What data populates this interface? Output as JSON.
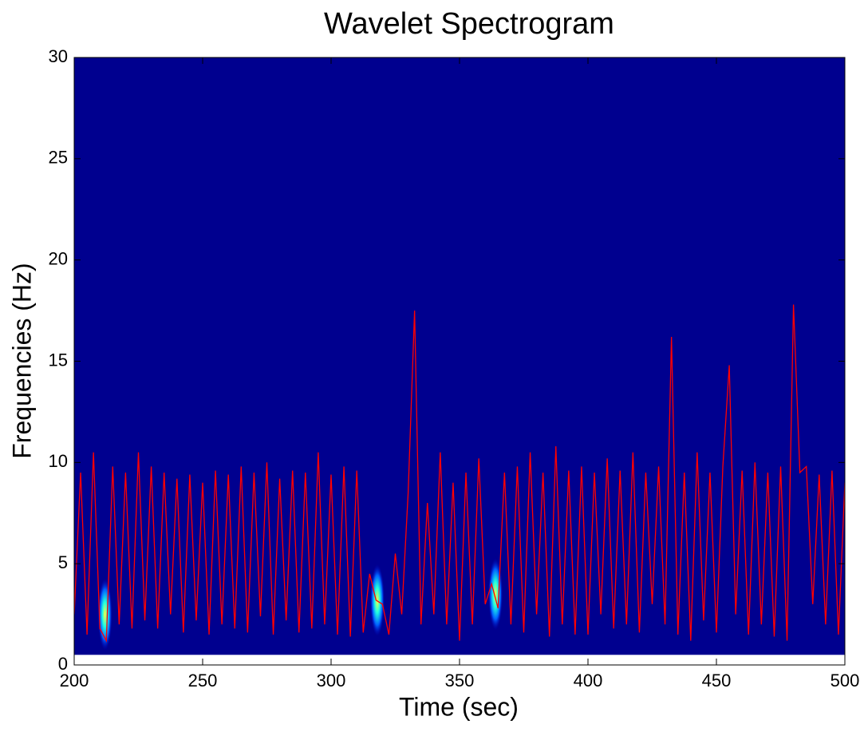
{
  "chart_data": {
    "type": "spectrogram",
    "title": "Wavelet Spectrogram",
    "x_label": "Time (sec)",
    "y_label": "Frequencies (Hz)",
    "xlim": [
      200,
      500
    ],
    "ylim": [
      0,
      30
    ],
    "xticks": [
      200,
      250,
      300,
      350,
      400,
      450,
      500
    ],
    "yticks": [
      0,
      5,
      10,
      15,
      20,
      25,
      30
    ],
    "spectrogram_ylim": [
      0.5,
      30
    ],
    "background_color": "#00008f",
    "hotspots": [
      {
        "x": 212,
        "y": 2.5
      },
      {
        "x": 318,
        "y": 3.2
      },
      {
        "x": 364,
        "y": 3.5
      }
    ],
    "series": [
      {
        "color": "#ff0000",
        "x": [
          200,
          202.5,
          205,
          207.5,
          210,
          212.5,
          215,
          217.5,
          220,
          222.5,
          225,
          227.5,
          230,
          232.5,
          235,
          237.5,
          240,
          242.5,
          245,
          247.5,
          250,
          252.5,
          255,
          257.5,
          260,
          262.5,
          265,
          267.5,
          270,
          272.5,
          275,
          277.5,
          280,
          282.5,
          285,
          287.5,
          290,
          292.5,
          295,
          297.5,
          300,
          302.5,
          305,
          307.5,
          310,
          312.5,
          315,
          317.5,
          320,
          322.5,
          325,
          327.5,
          330,
          332.5,
          335,
          337.5,
          340,
          342.5,
          345,
          347.5,
          350,
          352.5,
          355,
          357.5,
          360,
          362.5,
          365,
          367.5,
          370,
          372.5,
          375,
          377.5,
          380,
          382.5,
          385,
          387.5,
          390,
          392.5,
          395,
          397.5,
          400,
          402.5,
          405,
          407.5,
          410,
          412.5,
          415,
          417.5,
          420,
          422.5,
          425,
          427.5,
          430,
          432.5,
          435,
          437.5,
          440,
          442.5,
          445,
          447.5,
          450,
          452.5,
          455,
          457.5,
          460,
          462.5,
          465,
          467.5,
          470,
          472.5,
          475,
          477.5,
          480,
          482.5,
          485,
          487.5,
          490,
          492.5,
          495,
          497.5,
          500
        ],
        "values": [
          2.5,
          9.5,
          1.5,
          10.5,
          1.8,
          1.2,
          9.8,
          2,
          9.5,
          1.8,
          10.5,
          2.2,
          9.8,
          1.8,
          9.5,
          2.5,
          9.2,
          1.6,
          9.4,
          2.2,
          9,
          1.5,
          9.6,
          2,
          9.4,
          1.8,
          9.8,
          1.6,
          9.5,
          2.4,
          10,
          1.5,
          9.2,
          2.2,
          9.6,
          1.6,
          9.5,
          1.8,
          10.5,
          2,
          9.4,
          1.5,
          9.8,
          1.4,
          9.6,
          1.6,
          4.5,
          3.2,
          3,
          1.5,
          5.5,
          2.5,
          8.5,
          17.5,
          2,
          8,
          2.5,
          10.5,
          2,
          9,
          1.2,
          9.5,
          2,
          10.2,
          3,
          4,
          2.8,
          9.5,
          2,
          9.8,
          1.6,
          10.5,
          2.5,
          9.5,
          1.4,
          10.8,
          2,
          9.6,
          1.5,
          9.8,
          1.5,
          9.5,
          2.5,
          10.2,
          1.8,
          9.6,
          2,
          10.5,
          1.6,
          9.5,
          3,
          9.8,
          2,
          16.2,
          1.5,
          9.5,
          1.2,
          10.5,
          2.2,
          9.5,
          1.6,
          9.8,
          14.8,
          2.5,
          9.6,
          1.5,
          10,
          2,
          9.5,
          1.4,
          9.8,
          1.2,
          17.8,
          9.5,
          9.8,
          3,
          9.4,
          2,
          9.6,
          1.5,
          9
        ]
      }
    ]
  }
}
